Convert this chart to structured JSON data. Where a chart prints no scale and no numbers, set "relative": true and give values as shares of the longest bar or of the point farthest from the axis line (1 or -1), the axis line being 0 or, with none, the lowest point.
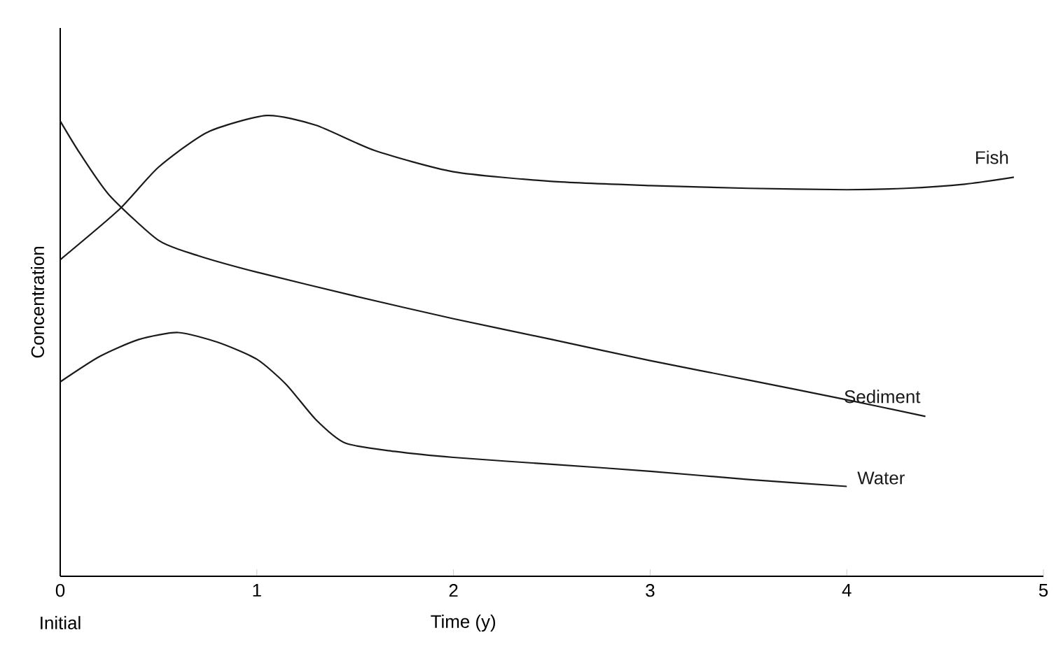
{
  "chart_data": {
    "type": "line",
    "relative": true,
    "xlabel": "Time (y)",
    "ylabel": "Concentration",
    "xlim": [
      0,
      5
    ],
    "xticks": [
      0,
      1,
      2,
      3,
      4,
      5
    ],
    "annotations": [
      "Initial"
    ],
    "marker": "none",
    "line_style": "solid",
    "grid": false,
    "series": [
      {
        "name": "Fish",
        "color": "#1a1a1a",
        "x": [
          0,
          0.3,
          0.5,
          0.75,
          1.05,
          1.3,
          1.6,
          2,
          2.5,
          3,
          3.5,
          4,
          4.3,
          4.6,
          4.85
        ],
        "values": [
          0.687,
          0.796,
          0.888,
          0.964,
          1.0,
          0.979,
          0.924,
          0.878,
          0.857,
          0.848,
          0.842,
          0.839,
          0.842,
          0.851,
          0.866
        ]
      },
      {
        "name": "Sediment",
        "color": "#1a1a1a",
        "x": [
          0,
          0.1,
          0.25,
          0.5,
          0.7,
          1,
          1.5,
          2,
          2.5,
          3,
          3.5,
          4,
          4.4
        ],
        "values": [
          0.988,
          0.918,
          0.827,
          0.729,
          0.696,
          0.66,
          0.608,
          0.559,
          0.514,
          0.468,
          0.426,
          0.383,
          0.347
        ]
      },
      {
        "name": "Water",
        "color": "#1a1a1a",
        "x": [
          0,
          0.2,
          0.4,
          0.6,
          0.8,
          1,
          1.15,
          1.3,
          1.45,
          1.7,
          2,
          2.5,
          3,
          3.5,
          4
        ],
        "values": [
          0.422,
          0.477,
          0.514,
          0.529,
          0.508,
          0.471,
          0.416,
          0.34,
          0.289,
          0.271,
          0.258,
          0.243,
          0.228,
          0.21,
          0.195
        ]
      }
    ]
  }
}
